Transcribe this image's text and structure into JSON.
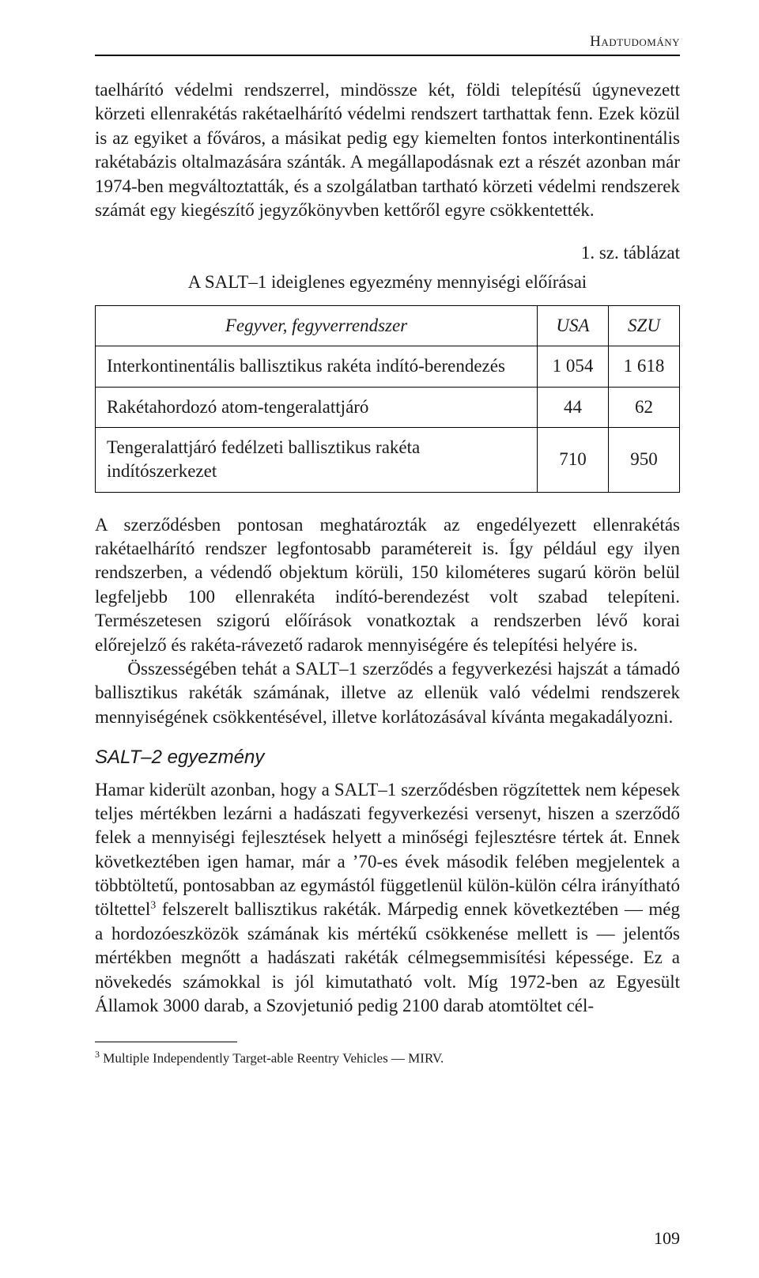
{
  "running_head": "Hadtudomány",
  "para1": "taelhárító védelmi rendszerrel, mindössze két, földi telepítésű úgynevezett körzeti ellenrakétás rakétaelhárító védelmi rendszert tarthattak fenn. Ezek közül is az egyiket a főváros, a másikat pedig egy kiemelten fontos interkontinentális rakétabázis oltalmazására szánták. A megállapodásnak ezt a részét azonban már 1974-ben megváltoztatták, és a szolgálatban tartható körzeti védelmi rendszerek számát egy kiegészítő jegyzőkönyvben kettőről egyre csökkentették.",
  "table_note": "1. sz. táblázat",
  "table_title": "A SALT–1 ideiglenes egyezmény mennyiségi előírásai",
  "table": {
    "col_header_0": "Fegyver, fegyverrendszer",
    "col_header_1": "USA",
    "col_header_2": "SZU",
    "rows": [
      {
        "label": "Interkontinentális ballisztikus rakéta indító-berendezés",
        "usa": "1 054",
        "szu": "1 618"
      },
      {
        "label": "Rakétahordozó atom-tengeralattjáró",
        "usa": "44",
        "szu": "62"
      },
      {
        "label": "Tengeralattjáró fedélzeti ballisztikus rakéta indítószerkezet",
        "usa": "710",
        "szu": "950"
      }
    ]
  },
  "para2": "A szerződésben pontosan meghatározták az engedélyezett ellenrakétás rakétaelhárító rendszer legfontosabb paramétereit is. Így például egy ilyen rendszerben, a védendő objektum körüli, 150 kilométeres sugarú körön belül legfeljebb 100 ellenrakéta indító-berendezést volt szabad telepíteni. Természetesen szigorú előírások vonatkoztak a rendszerben lévő korai előrejelző és rakéta-rávezető radarok mennyiségére és telepítési helyére is.",
  "para3": "Összességében tehát a SALT–1 szerződés a fegyverkezési hajszát a támadó ballisztikus rakéták számának, illetve az ellenük való védelmi rendszerek mennyiségének csökkentésével, illetve korlátozásával kívánta megakadályozni.",
  "subhead": "SALT–2 egyezmény",
  "para4a": "Hamar kiderült azonban, hogy a SALT–1 szerződésben rögzítettek nem képesek teljes mértékben lezárni a hadászati fegyverkezési versenyt, hiszen a szerződő felek a mennyiségi fejlesztések helyett a minőségi fejlesztésre tértek át. Ennek következtében igen hamar, már a ’70-es évek második felében megjelentek a többtöltetű, pontosabban az egymástól függetlenül külön-külön célra irányítható töltettel",
  "fn_mark": "3",
  "para4b": " felszerelt ballisztikus rakéták. Márpedig ennek következtében — még a hordozóeszközök számának kis mértékű csökkenése mellett is — jelentős mértékben megnőtt a hadászati rakéták célmegsemmisítési képessége. Ez a növekedés számokkal is jól kimutatható volt. Míg 1972-ben az Egyesült Államok 3000 darab, a Szovjetunió pedig 2100 darab atomtöltet cél-",
  "footnote_num": "3",
  "footnote_text": " Multiple Independently Target-able Reentry Vehicles — MIRV.",
  "page_number": "109"
}
